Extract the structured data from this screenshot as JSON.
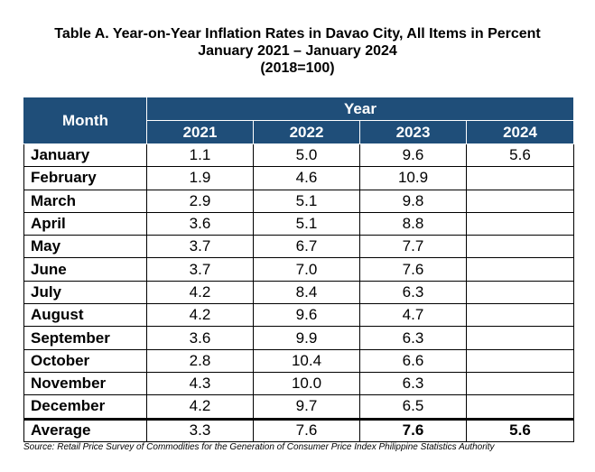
{
  "title": {
    "line1": "Table A. Year-on-Year Inflation Rates in Davao City, All Items in Percent",
    "line2": "January 2021 – January 2024",
    "line3": "(2018=100)"
  },
  "table": {
    "month_header": "Month",
    "year_header": "Year",
    "years": [
      "2021",
      "2022",
      "2023",
      "2024"
    ],
    "rows": [
      {
        "month": "January",
        "values": [
          "1.1",
          "5.0",
          "9.6",
          "5.6"
        ]
      },
      {
        "month": "February",
        "values": [
          "1.9",
          "4.6",
          "10.9",
          ""
        ]
      },
      {
        "month": "March",
        "values": [
          "2.9",
          "5.1",
          "9.8",
          ""
        ]
      },
      {
        "month": "April",
        "values": [
          "3.6",
          "5.1",
          "8.8",
          ""
        ]
      },
      {
        "month": "May",
        "values": [
          "3.7",
          "6.7",
          "7.7",
          ""
        ]
      },
      {
        "month": "June",
        "values": [
          "3.7",
          "7.0",
          "7.6",
          ""
        ]
      },
      {
        "month": "July",
        "values": [
          "4.2",
          "8.4",
          "6.3",
          ""
        ]
      },
      {
        "month": "August",
        "values": [
          "4.2",
          "9.6",
          "4.7",
          ""
        ]
      },
      {
        "month": "September",
        "values": [
          "3.6",
          "9.9",
          "6.3",
          ""
        ]
      },
      {
        "month": "October",
        "values": [
          "2.8",
          "10.4",
          "6.6",
          ""
        ]
      },
      {
        "month": "November",
        "values": [
          "4.3",
          "10.0",
          "6.3",
          ""
        ]
      },
      {
        "month": "December",
        "values": [
          "4.2",
          "9.7",
          "6.5",
          ""
        ]
      }
    ],
    "average": {
      "label": "Average",
      "values": [
        "3.3",
        "7.6",
        "7.6",
        "5.6"
      ]
    }
  },
  "source": "Source: Retail Price Survey of Commodities for the Generation of Consumer Price Index Philippine Statistics Authority",
  "colors": {
    "header_bg": "#1f4e79",
    "header_text": "#ffffff"
  }
}
